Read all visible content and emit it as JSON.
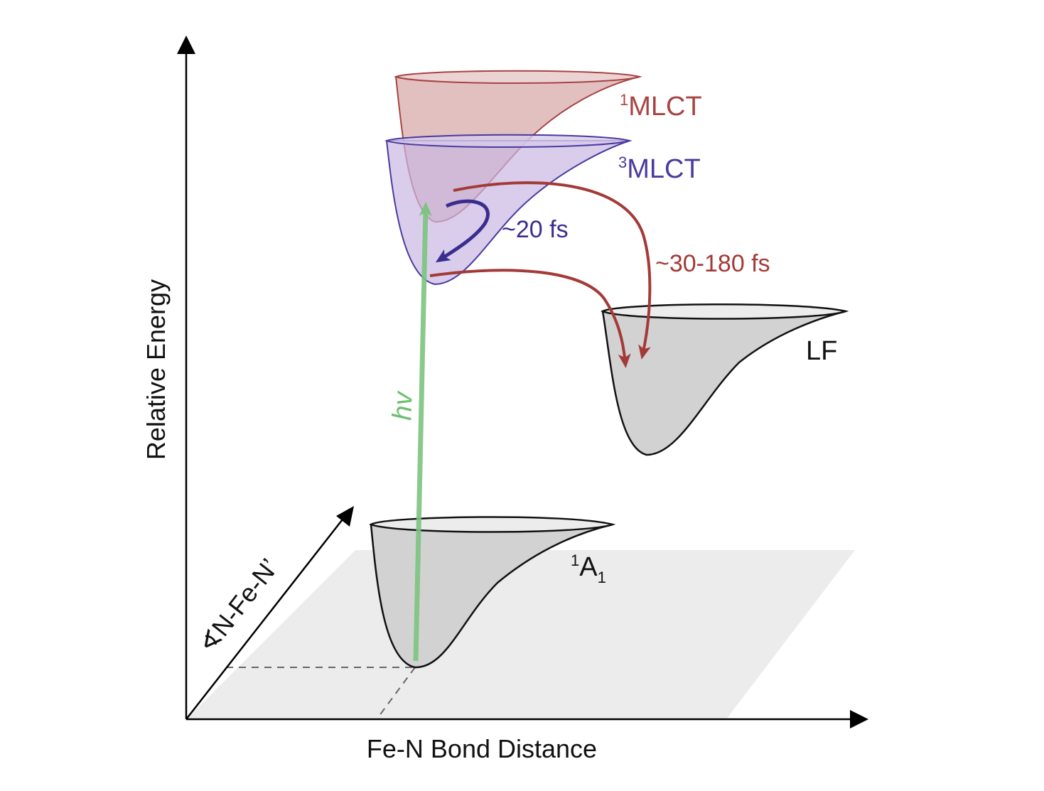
{
  "axes": {
    "x_label": "Fe-N Bond Distance",
    "y_label": "Relative Energy",
    "z_label": "∢N-Fe-N’"
  },
  "states": {
    "mlct1": {
      "sup": "1",
      "name": "MLCT",
      "color": "#a84343",
      "fill": "#d9a9a9"
    },
    "mlct3": {
      "sup": "3",
      "name": "MLCT",
      "color": "#4a3a9e",
      "fill": "#cdbfe4"
    },
    "lf": {
      "name": "LF",
      "color": "#111111",
      "fill": "#d2d2d2"
    },
    "a1": {
      "sup": "1",
      "name": "A",
      "sub": "1",
      "color": "#111111",
      "fill": "#d2d2d2"
    }
  },
  "transitions": {
    "excitation": {
      "label": "hv",
      "color": "#7cc47f"
    },
    "isc": {
      "label": "~20 fs",
      "color": "#3b2d8f"
    },
    "relaxation": {
      "label": "~30-180 fs",
      "color": "#a33a37"
    }
  },
  "colors": {
    "plane": "#ececec",
    "axis": "#000000",
    "dash": "#666666"
  }
}
